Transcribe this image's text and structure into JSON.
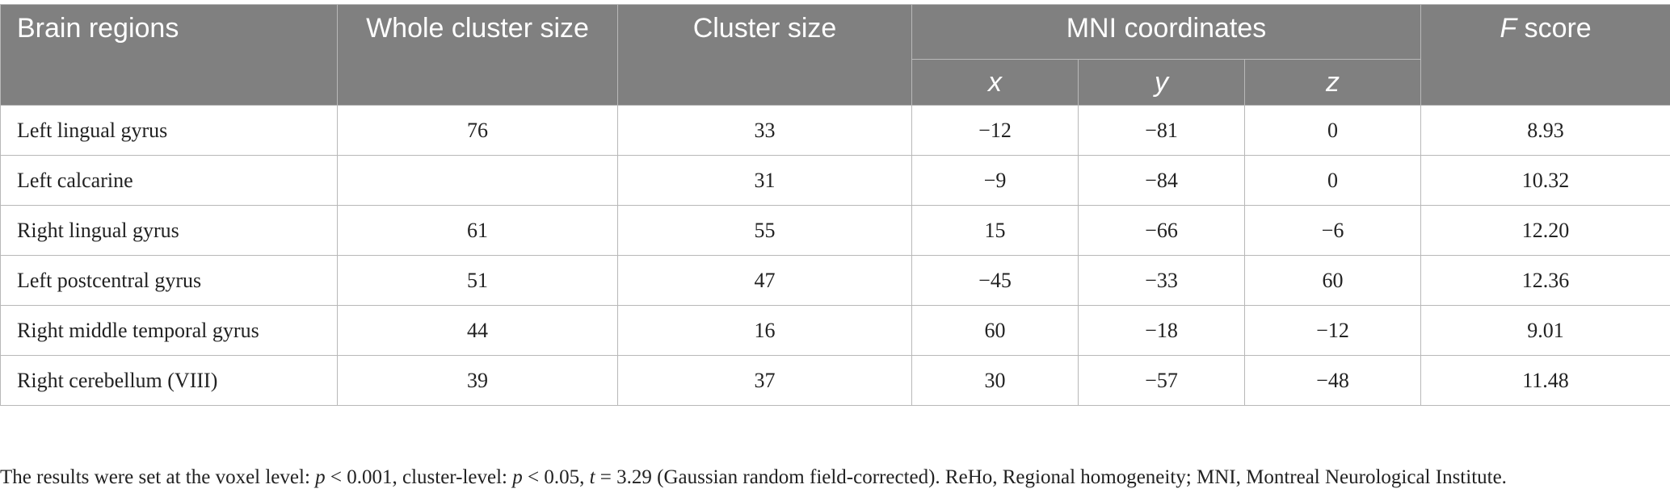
{
  "table": {
    "header": {
      "brain_regions": "Brain regions",
      "whole_cluster_size": "Whole cluster size",
      "cluster_size": "Cluster size",
      "mni": "MNI coordinates",
      "x": "x",
      "y": "y",
      "z": "z",
      "f_score": [
        "F",
        " score"
      ]
    },
    "rows": [
      [
        "Left lingual gyrus",
        "76",
        "33",
        "−12",
        "−81",
        "0",
        "8.93"
      ],
      [
        "Left calcarine",
        null,
        "31",
        "−9",
        "−84",
        "0",
        "10.32"
      ],
      [
        "Right lingual gyrus",
        "61",
        "55",
        "15",
        "−66",
        "−6",
        "12.20"
      ],
      [
        "Left postcentral gyrus",
        "51",
        "47",
        "−45",
        "−33",
        "60",
        "12.36"
      ],
      [
        "Right middle temporal gyrus",
        "44",
        "16",
        "60",
        "−18",
        "−12",
        "9.01"
      ],
      [
        "Right cerebellum (VIII)",
        "39",
        "37",
        "30",
        "−57",
        "−48",
        "11.48"
      ]
    ]
  },
  "footnote": [
    "The results were set at the voxel level: ",
    "p",
    " < 0.001, cluster-level: ",
    "p",
    " < 0.05, ",
    "t",
    " = 3.29 (Gaussian random field-corrected). ReHo, Regional homogeneity; MNI, Montreal Neurological Institute."
  ]
}
